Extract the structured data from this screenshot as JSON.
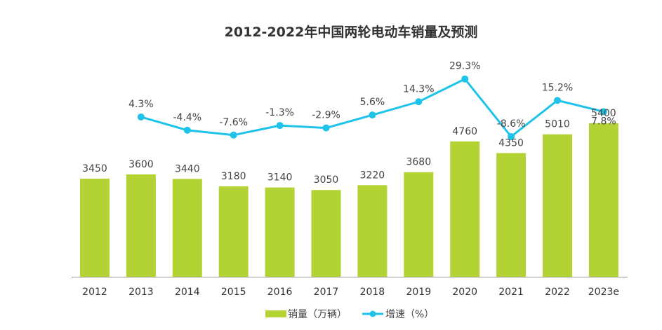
{
  "chart_data": {
    "type": "bar+line",
    "title": "2012-2022年中国两轮电动车销量及预测",
    "categories": [
      "2012",
      "2013",
      "2014",
      "2015",
      "2016",
      "2017",
      "2018",
      "2019",
      "2020",
      "2021",
      "2022",
      "2023e"
    ],
    "series": [
      {
        "name": "销量（万辆）",
        "type": "bar",
        "color": "#b3d334",
        "values": [
          3450,
          3600,
          3440,
          3180,
          3140,
          3050,
          3220,
          3680,
          4760,
          4350,
          5010,
          5400
        ],
        "labels": [
          "3450",
          "3600",
          "3440",
          "3180",
          "3140",
          "3050",
          "3220",
          "3680",
          "4760",
          "4350",
          "5010",
          "5400"
        ]
      },
      {
        "name": "增速（%）",
        "type": "line",
        "color": "#1ec3ea",
        "values": [
          null,
          4.3,
          -4.4,
          -7.6,
          -1.3,
          -2.9,
          5.6,
          14.3,
          29.3,
          -8.6,
          15.2,
          7.8
        ],
        "labels": [
          "",
          "4.3%",
          "-4.4%",
          "-7.6%",
          "-1.3%",
          "-2.9%",
          "5.6%",
          "14.3%",
          "29.3%",
          "-8.6%",
          "15.2%",
          "7.8%"
        ]
      }
    ],
    "legend": {
      "placement": "bottom",
      "items": [
        "销量（万辆）",
        "增速（%）"
      ]
    },
    "grid": false,
    "xlabel": "",
    "ylabel": ""
  }
}
